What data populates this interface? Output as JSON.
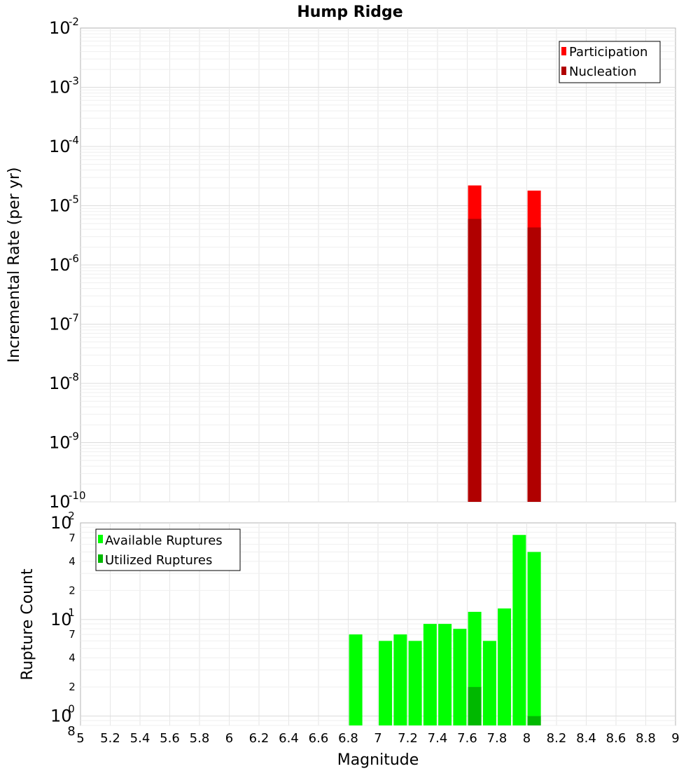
{
  "chart_data": [
    {
      "type": "bar",
      "title": "Hump Ridge",
      "ylabel": "Incremental Rate (per yr)",
      "xlabel": "",
      "yscale": "log",
      "ylim": [
        1e-10,
        0.01
      ],
      "xlim": [
        5,
        9
      ],
      "grid": true,
      "legend_position": "top-right",
      "y_tick_exponents": [
        "-10",
        "-9",
        "-8",
        "-7",
        "-6",
        "-5",
        "-4",
        "-3",
        "-2"
      ],
      "series": [
        {
          "name": "Participation",
          "color": "#ff0000",
          "points": [
            {
              "x": 7.65,
              "y": 2.2e-05
            },
            {
              "x": 8.05,
              "y": 1.8e-05
            }
          ]
        },
        {
          "name": "Nucleation",
          "color": "#b00000",
          "points": [
            {
              "x": 7.65,
              "y": 6e-06
            },
            {
              "x": 8.05,
              "y": 4.3e-06
            }
          ]
        }
      ]
    },
    {
      "type": "bar",
      "title": "",
      "ylabel": "Rupture Count",
      "xlabel": "Magnitude",
      "yscale": "log",
      "ylim": [
        0.8,
        100
      ],
      "xlim": [
        5,
        9
      ],
      "grid": true,
      "legend_position": "top-left",
      "x_ticks": [
        "5",
        "5.2",
        "5.4",
        "5.6",
        "5.8",
        "6",
        "6.2",
        "6.4",
        "6.6",
        "6.8",
        "7",
        "7.2",
        "7.4",
        "7.6",
        "7.8",
        "8",
        "8.2",
        "8.4",
        "8.6",
        "8.8",
        "9"
      ],
      "y_major_exponents": [
        "0",
        "1",
        "2"
      ],
      "y_minor_labels": [
        "2",
        "4",
        "7",
        "2",
        "4",
        "7"
      ],
      "y_bottom_label": "8",
      "series": [
        {
          "name": "Available Ruptures",
          "color": "#00ff00",
          "points": [
            {
              "x": 6.85,
              "y": 7
            },
            {
              "x": 7.05,
              "y": 6
            },
            {
              "x": 7.15,
              "y": 7
            },
            {
              "x": 7.25,
              "y": 6
            },
            {
              "x": 7.35,
              "y": 9
            },
            {
              "x": 7.45,
              "y": 9
            },
            {
              "x": 7.55,
              "y": 8
            },
            {
              "x": 7.65,
              "y": 12
            },
            {
              "x": 7.75,
              "y": 6
            },
            {
              "x": 7.85,
              "y": 13
            },
            {
              "x": 7.95,
              "y": 75
            },
            {
              "x": 8.05,
              "y": 50
            }
          ]
        },
        {
          "name": "Utilized Ruptures",
          "color": "#00b800",
          "points": [
            {
              "x": 7.65,
              "y": 2
            },
            {
              "x": 8.05,
              "y": 1
            }
          ]
        }
      ]
    }
  ]
}
